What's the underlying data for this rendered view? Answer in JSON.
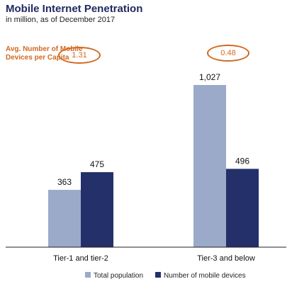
{
  "chart_data": {
    "type": "bar",
    "title": "Mobile Internet Penetration",
    "subtitle": "in million, as of December 2017",
    "categories": [
      "Tier-1 and tier-2",
      "Tier-3 and below"
    ],
    "series": [
      {
        "name": "Total population",
        "values": [
          363,
          1027
        ],
        "labels": [
          "363",
          "1,027"
        ],
        "color": "#9aaac8"
      },
      {
        "name": "Number of mobile devices",
        "values": [
          475,
          496
        ],
        "labels": [
          "475",
          "496"
        ],
        "color": "#243069"
      }
    ],
    "ylim": [
      0,
      1100
    ],
    "grid": false,
    "legend": "bottom",
    "annotation": {
      "label": "Avg. Number of Mobile Devices per Capita",
      "values": [
        "1.31",
        "0.48"
      ],
      "color": "#d2691e"
    }
  }
}
